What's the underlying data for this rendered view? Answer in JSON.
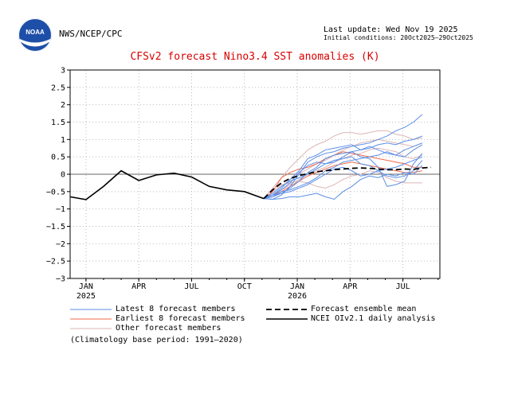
{
  "header": {
    "logo_text": "NOAA",
    "agency": "NWS/NCEP/CPC",
    "last_update": "Last update: Wed Nov 19 2025",
    "initial_conditions": "Initial conditions: 20Oct2025–29Oct2025"
  },
  "chart_data": {
    "type": "line",
    "title": "CFSv2 forecast Nino3.4 SST anomalies (K)",
    "xlabel": "",
    "ylabel": "",
    "ylim": [
      -3,
      3
    ],
    "yticks": [
      "3",
      "2.5",
      "2",
      "1.5",
      "1",
      "0.5",
      "0",
      "−0.5",
      "−1",
      "−1.5",
      "−2",
      "−2.5",
      "−3"
    ],
    "x_ticks": [
      {
        "month": 1,
        "label": "JAN",
        "year": "2025"
      },
      {
        "month": 4,
        "label": "APR",
        "year": ""
      },
      {
        "month": 7,
        "label": "JUL",
        "year": ""
      },
      {
        "month": 10,
        "label": "OCT",
        "year": ""
      },
      {
        "month": 13,
        "label": "JAN",
        "year": "2026"
      },
      {
        "month": 16,
        "label": "APR",
        "year": ""
      },
      {
        "month": 19,
        "label": "JUL",
        "year": ""
      }
    ],
    "xlim": [
      0.1,
      21.1
    ],
    "grid": true,
    "observed": {
      "name": "NCEI OIv2.1 daily analysis",
      "x": [
        0.1,
        1.0,
        2.0,
        3.0,
        4.0,
        5.0,
        6.0,
        7.0,
        8.0,
        9.0,
        10.0,
        11.1
      ],
      "y": [
        -0.65,
        -0.73,
        -0.35,
        0.1,
        -0.18,
        -0.02,
        0.03,
        -0.08,
        -0.35,
        -0.45,
        -0.5,
        -0.7
      ]
    },
    "ensemble_mean": {
      "name": "Forecast ensemble mean",
      "x": [
        11.1,
        11.6,
        12.1,
        12.6,
        13.1,
        13.6,
        14.1,
        14.6,
        15.1,
        15.6,
        16.1,
        16.6,
        17.1,
        17.6,
        18.1,
        18.6,
        19.1,
        19.6,
        20.1,
        20.6
      ],
      "y": [
        -0.7,
        -0.45,
        -0.25,
        -0.12,
        -0.04,
        0.02,
        0.07,
        0.1,
        0.13,
        0.15,
        0.17,
        0.18,
        0.17,
        0.15,
        0.13,
        0.13,
        0.15,
        0.14,
        0.18,
        0.2
      ]
    },
    "members": [
      {
        "group": "latest",
        "y": [
          -0.7,
          -0.72,
          -0.6,
          -0.35,
          0.0,
          0.35,
          0.5,
          0.6,
          0.65,
          0.75,
          0.8,
          0.85,
          0.9,
          1.0,
          1.1,
          1.25,
          1.35,
          1.5,
          1.72
        ]
      },
      {
        "group": "latest",
        "y": [
          -0.7,
          -0.6,
          -0.4,
          -0.15,
          0.1,
          0.45,
          0.55,
          0.7,
          0.75,
          0.8,
          0.85,
          0.7,
          0.75,
          0.85,
          0.9,
          0.85,
          0.95,
          1.0,
          1.1
        ]
      },
      {
        "group": "latest",
        "y": [
          -0.7,
          -0.65,
          -0.55,
          -0.4,
          -0.2,
          0.05,
          0.2,
          0.45,
          0.55,
          0.6,
          0.65,
          0.7,
          0.8,
          0.7,
          0.6,
          0.55,
          0.7,
          0.8,
          0.9
        ]
      },
      {
        "group": "latest",
        "y": [
          -0.7,
          -0.72,
          -0.7,
          -0.65,
          -0.65,
          -0.6,
          -0.55,
          -0.65,
          -0.72,
          -0.5,
          -0.35,
          -0.15,
          -0.05,
          -0.1,
          0.0,
          -0.05,
          0.05,
          0.0,
          0.25
        ]
      },
      {
        "group": "latest",
        "y": [
          -0.7,
          -0.55,
          -0.35,
          -0.2,
          -0.1,
          0.0,
          0.15,
          0.3,
          0.4,
          0.45,
          0.5,
          0.3,
          0.25,
          0.1,
          -0.05,
          -0.1,
          -0.05,
          0.1,
          0.4
        ]
      },
      {
        "group": "latest",
        "y": [
          -0.7,
          -0.6,
          -0.45,
          -0.25,
          0.05,
          0.25,
          0.35,
          0.3,
          0.35,
          0.5,
          0.65,
          0.5,
          0.45,
          0.2,
          -0.35,
          -0.3,
          -0.2,
          0.3,
          0.6
        ]
      },
      {
        "group": "latest",
        "y": [
          -0.7,
          -0.65,
          -0.5,
          -0.45,
          -0.35,
          -0.25,
          -0.1,
          0.1,
          0.2,
          0.35,
          0.4,
          0.45,
          0.5,
          0.55,
          0.65,
          0.55,
          0.5,
          0.7,
          0.85
        ]
      },
      {
        "group": "latest",
        "y": [
          -0.7,
          -0.6,
          -0.55,
          -0.5,
          -0.4,
          -0.3,
          -0.15,
          0.0,
          0.15,
          0.2,
          0.1,
          -0.05,
          0.0,
          0.1,
          0.15,
          0.2,
          0.3,
          0.4,
          0.5
        ]
      },
      {
        "group": "earliest",
        "y": [
          -0.7,
          -0.5,
          -0.1,
          0.05,
          0.15,
          0.2,
          0.3,
          0.45,
          0.55,
          0.65,
          0.6,
          0.55,
          0.5,
          0.45,
          0.4,
          0.35,
          0.3,
          0.2,
          0.2
        ]
      },
      {
        "group": "earliest",
        "y": [
          -0.7,
          -0.6,
          -0.5,
          -0.35,
          -0.2,
          -0.05,
          0.05,
          0.15,
          0.25,
          0.3,
          0.35,
          0.3,
          0.25,
          0.2,
          0.15,
          0.1,
          0.05,
          0.05,
          0.1
        ]
      },
      {
        "group": "other",
        "y": [
          -0.7,
          -0.5,
          -0.3,
          -0.25,
          -0.2,
          -0.25,
          -0.35,
          -0.4,
          -0.3,
          -0.15,
          -0.05,
          0.0,
          0.1,
          0.05,
          -0.1,
          -0.2,
          -0.25,
          -0.25,
          -0.25
        ]
      },
      {
        "group": "other",
        "y": [
          -0.7,
          -0.4,
          -0.1,
          0.2,
          0.45,
          0.7,
          0.85,
          0.95,
          1.1,
          1.2,
          1.2,
          1.15,
          1.2,
          1.25,
          1.25,
          1.15,
          1.1,
          1.0,
          1.05
        ]
      },
      {
        "group": "other",
        "y": [
          -0.7,
          -0.55,
          -0.35,
          -0.15,
          0.0,
          0.15,
          0.3,
          0.4,
          0.55,
          0.7,
          0.8,
          0.9,
          0.95,
          1.0,
          0.95,
          0.9,
          0.85,
          0.8,
          0.9
        ]
      },
      {
        "group": "other",
        "y": [
          -0.7,
          -0.6,
          -0.45,
          -0.3,
          -0.15,
          0.0,
          0.1,
          0.2,
          0.35,
          0.45,
          0.55,
          0.6,
          0.7,
          0.75,
          0.7,
          0.65,
          0.5,
          0.45,
          0.55
        ]
      }
    ],
    "member_x_start": 11.1,
    "member_x_step": 0.5,
    "colors": {
      "latest": "#5b8ee6",
      "earliest": "#f06b4a",
      "other": "#dcb6b6",
      "observed": "#000000",
      "mean": "#000000",
      "grid": "#bbbbbb",
      "zero": "#666666",
      "title": "#d80000"
    },
    "legend": {
      "latest": "Latest 8 forecast members",
      "earliest": "Earliest 8 forecast members",
      "other": "Other forecast members",
      "mean": "Forecast ensemble mean",
      "observed": "NCEI OIv2.1 daily analysis",
      "note": "(Climatology base period: 1991–2020)"
    }
  }
}
